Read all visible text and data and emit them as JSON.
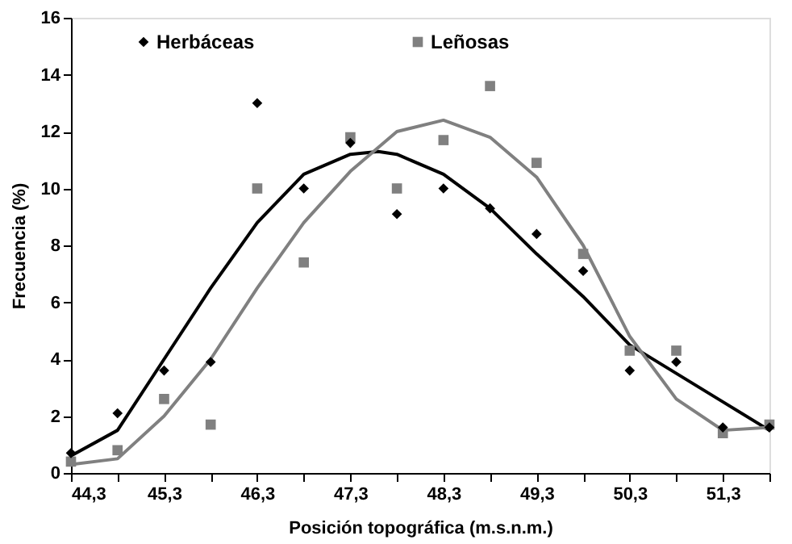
{
  "chart_data": {
    "type": "scatter",
    "xlabel": "Posición topográfica (m.s.n.m.)",
    "ylabel": "Frecuencia  (%)",
    "x": [
      44.3,
      44.8,
      45.3,
      45.8,
      46.3,
      46.8,
      47.3,
      47.8,
      48.3,
      48.8,
      49.3,
      49.8,
      50.3,
      50.8,
      51.3,
      51.8
    ],
    "series": [
      {
        "name": "Herbáceas",
        "color": "#000000",
        "marker": "diamond",
        "values": [
          0.7,
          2.1,
          3.6,
          3.9,
          13.0,
          10.0,
          11.6,
          9.1,
          10.0,
          9.3,
          8.4,
          7.1,
          3.6,
          3.9,
          1.6,
          1.6
        ]
      },
      {
        "name": "Leñosas",
        "color": "#808080",
        "marker": "square",
        "values": [
          0.4,
          0.8,
          2.6,
          1.7,
          10.0,
          7.4,
          11.8,
          10.0,
          11.7,
          13.6,
          10.9,
          7.7,
          4.3,
          4.3,
          1.4,
          1.7
        ]
      },
      {
        "type": "line",
        "color": "#000000",
        "x": [
          44.3,
          44.8,
          45.3,
          45.8,
          46.3,
          46.8,
          47.3,
          47.6,
          47.8,
          48.3,
          48.8,
          49.3,
          49.8,
          50.3,
          50.8,
          51.3,
          51.8
        ],
        "values": [
          0.6,
          1.5,
          4.0,
          6.5,
          8.8,
          10.5,
          11.2,
          11.3,
          11.2,
          10.5,
          9.3,
          7.7,
          6.2,
          4.5,
          3.5,
          2.5,
          1.5
        ]
      },
      {
        "type": "line",
        "color": "#808080",
        "x": [
          44.3,
          44.8,
          45.3,
          45.8,
          46.3,
          46.8,
          47.3,
          47.8,
          48.3,
          48.8,
          49.3,
          49.8,
          50.3,
          50.8,
          51.3,
          51.8
        ],
        "values": [
          0.3,
          0.5,
          2.0,
          4.0,
          6.5,
          8.8,
          10.6,
          12.0,
          12.4,
          11.8,
          10.4,
          8.0,
          4.8,
          2.6,
          1.5,
          1.6
        ]
      }
    ],
    "xlim": [
      44.3,
      51.8
    ],
    "xticks": [
      {
        "value": 44.3,
        "label": "44,3"
      },
      {
        "value": 44.8,
        "label": null
      },
      {
        "value": 45.3,
        "label": "45,3"
      },
      {
        "value": 45.8,
        "label": null
      },
      {
        "value": 46.3,
        "label": "46,3"
      },
      {
        "value": 46.8,
        "label": null
      },
      {
        "value": 47.3,
        "label": "47,3"
      },
      {
        "value": 47.8,
        "label": null
      },
      {
        "value": 48.3,
        "label": "48,3"
      },
      {
        "value": 48.8,
        "label": null
      },
      {
        "value": 49.3,
        "label": "49,3"
      },
      {
        "value": 49.8,
        "label": null
      },
      {
        "value": 50.3,
        "label": "50,3"
      },
      {
        "value": 50.8,
        "label": null
      },
      {
        "value": 51.3,
        "label": "51,3"
      },
      {
        "value": 51.8,
        "label": null
      }
    ],
    "ylim": [
      0,
      16
    ],
    "yticks": [
      0,
      2,
      4,
      6,
      8,
      10,
      12,
      14,
      16
    ],
    "grid": false,
    "legend": "top",
    "line_style": "solid"
  }
}
